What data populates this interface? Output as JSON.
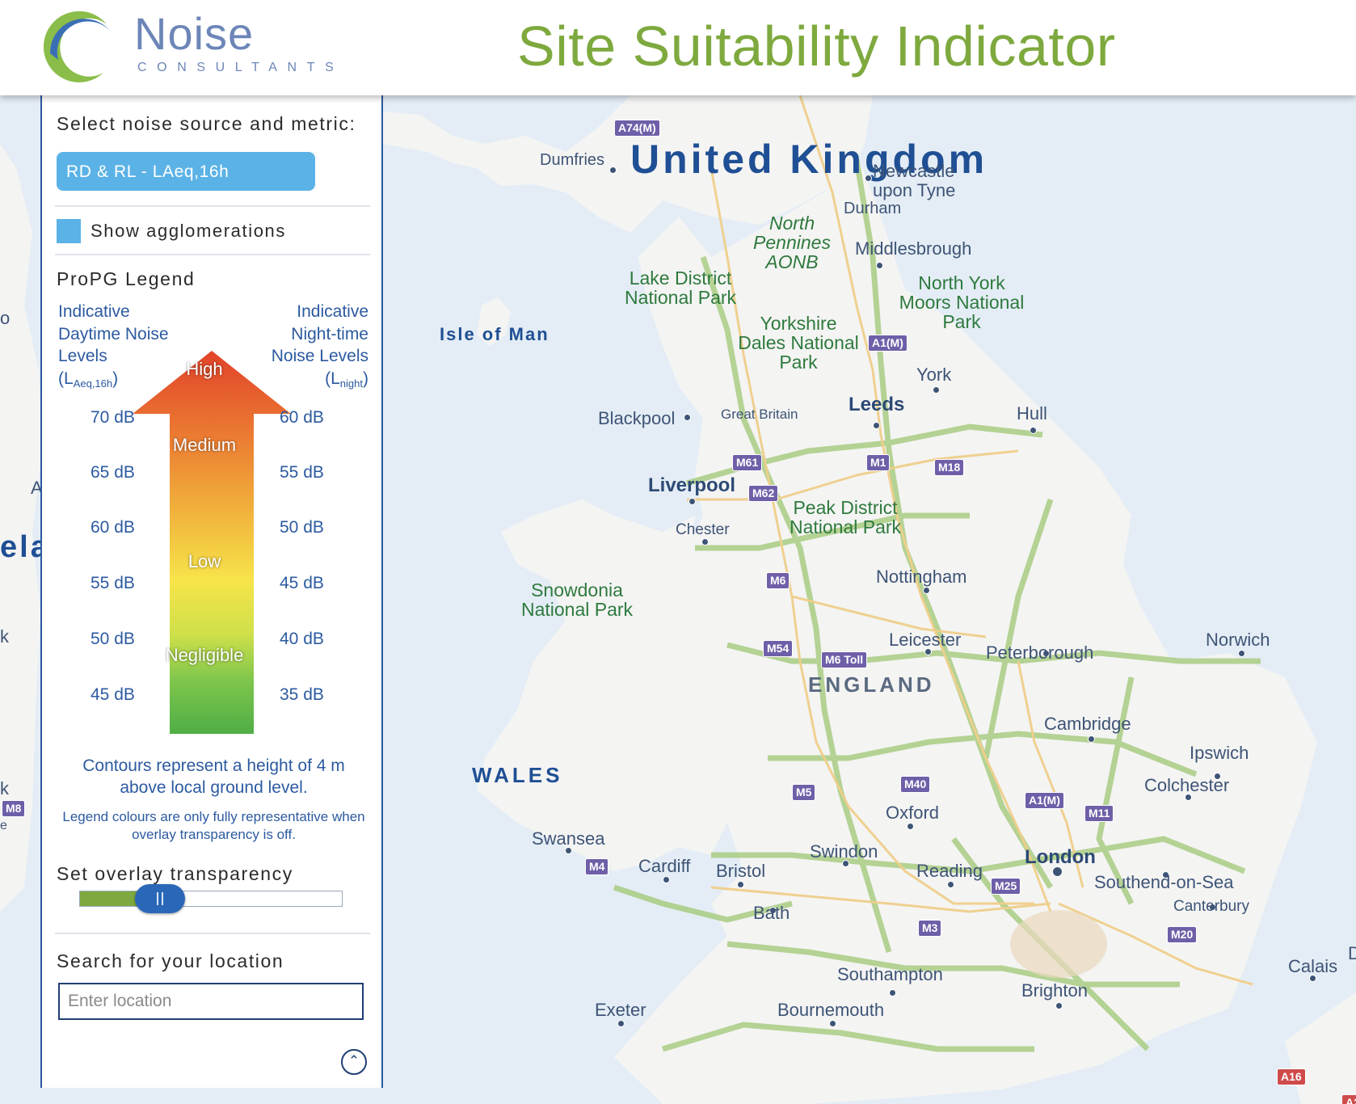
{
  "header": {
    "logo_name": "Noise",
    "logo_sub": "CONSULTANTS",
    "title": "Site Suitability Indicator"
  },
  "sidebar": {
    "select_heading": "Select noise source and metric:",
    "metric_button": "RD & RL - LAeq,16h",
    "show_agglomerations": "Show agglomerations",
    "legend_title": "ProPG Legend",
    "day_header": {
      "line1": "Indicative",
      "line2": "Daytime Noise",
      "line3": "Levels",
      "metric_open": "(L",
      "metric_sub": "Aeq,16h",
      "metric_close": ")"
    },
    "night_header": {
      "line1": "Indicative",
      "line2": "Night-time",
      "line3": "Noise Levels",
      "metric_open": "(L",
      "metric_sub": "night",
      "metric_close": ")"
    },
    "arrow_labels": [
      "High",
      "Medium",
      "Low",
      "Negligible"
    ],
    "day_levels": [
      "70 dB",
      "65 dB",
      "60 dB",
      "55 dB",
      "50 dB",
      "45 dB"
    ],
    "night_levels": [
      "60 dB",
      "55 dB",
      "50 dB",
      "45 dB",
      "40 dB",
      "35 dB"
    ],
    "contour_note": "Contours represent a height of 4 m above local ground level.",
    "legend_note": "Legend colours are only fully representative when overlay transparency is off.",
    "transparency_heading": "Set overlay transparency",
    "transparency_value": 0.31,
    "search_heading": "Search for your location",
    "search_placeholder": "Enter location"
  },
  "map": {
    "colors": {
      "sea": "#e4edf5",
      "land": "#f4f4f3",
      "overlay": "#a9cd83",
      "road": "#efcf8b"
    },
    "countries": [
      "United Kingdom",
      "ENGLAND",
      "WALES"
    ],
    "edge_fragments": [
      "o",
      "A",
      "ela",
      "k",
      "k",
      "e",
      "D",
      "A2"
    ],
    "islands": [
      "Isle of Man"
    ],
    "parks": [
      "North Pennines AONB",
      "Lake District National Park",
      "North York Moors National Park",
      "Yorkshire Dales National Park",
      "Peak District National Park",
      "Snowdonia National Park"
    ],
    "cities": [
      "Dumfries",
      "Newcastle upon Tyne",
      "Durham",
      "Middlesbrough",
      "York",
      "Leeds",
      "Hull",
      "Blackpool",
      "Great Britain",
      "Liverpool",
      "Chester",
      "Nottingham",
      "Leicester",
      "Peterborough",
      "Norwich",
      "Cambridge",
      "Ipswich",
      "Colchester",
      "Oxford",
      "Swansea",
      "Cardiff",
      "Bristol",
      "Bath",
      "Swindon",
      "Reading",
      "London",
      "Southend-on-Sea",
      "Canterbury",
      "Southampton",
      "Brighton",
      "Bournemouth",
      "Exeter",
      "Calais"
    ],
    "roads": [
      "A74(M)",
      "A1(M)",
      "M61",
      "M1",
      "M18",
      "M62",
      "M6",
      "M54",
      "M6 Toll",
      "M40",
      "M5",
      "A1(M)",
      "M11",
      "M4",
      "M25",
      "M3",
      "M20",
      "A16",
      "M8"
    ]
  }
}
